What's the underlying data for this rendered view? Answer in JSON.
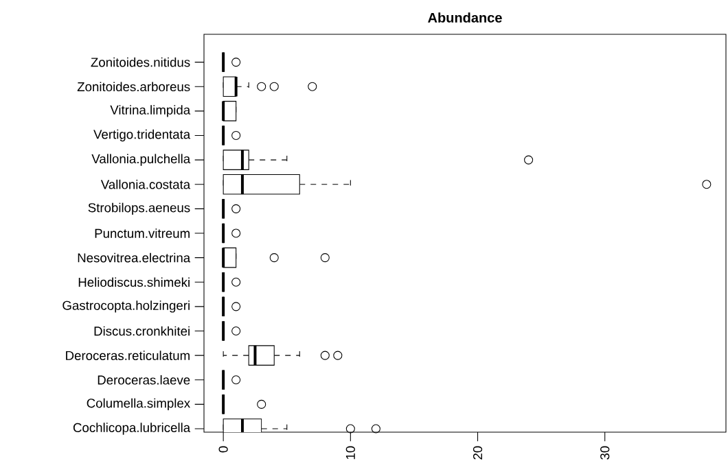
{
  "chart_data": {
    "type": "box",
    "orientation": "horizontal",
    "title": "Abundance",
    "categories": [
      "Zonitoides.nitidus",
      "Zonitoides.arboreus",
      "Vitrina.limpida",
      "Vertigo.tridentata",
      "Vallonia.pulchella",
      "Vallonia.costata",
      "Strobilops.aeneus",
      "Punctum.vitreum",
      "Nesovitrea.electrina",
      "Heliodiscus.shimeki",
      "Gastrocopta.holzingeri",
      "Discus.cronkhitei",
      "Deroceras.reticulatum",
      "Deroceras.laeve",
      "Columella.simplex",
      "Cochlicopa.lubricella"
    ],
    "boxes": [
      {
        "low": 0,
        "q1": 0,
        "median": 0,
        "q3": 0,
        "high": 0,
        "outliers": [
          1
        ]
      },
      {
        "low": 0,
        "q1": 0,
        "median": 1,
        "q3": 1,
        "high": 2,
        "outliers": [
          3,
          4,
          7
        ]
      },
      {
        "low": 0,
        "q1": 0,
        "median": 0,
        "q3": 1,
        "high": 1
      },
      {
        "low": 0,
        "q1": 0,
        "median": 0,
        "q3": 0,
        "high": 0,
        "outliers": [
          1
        ]
      },
      {
        "low": 0,
        "q1": 0,
        "median": 1.5,
        "q3": 2,
        "high": 5,
        "outliers": [
          24
        ]
      },
      {
        "low": 0,
        "q1": 0,
        "median": 1.5,
        "q3": 6,
        "high": 10,
        "outliers": [
          38
        ]
      },
      {
        "low": 0,
        "q1": 0,
        "median": 0,
        "q3": 0,
        "high": 0,
        "outliers": [
          1
        ]
      },
      {
        "low": 0,
        "q1": 0,
        "median": 0,
        "q3": 0,
        "high": 0,
        "outliers": [
          1
        ]
      },
      {
        "low": 0,
        "q1": 0,
        "median": 0,
        "q3": 1,
        "high": 1,
        "outliers": [
          4,
          8
        ]
      },
      {
        "low": 0,
        "q1": 0,
        "median": 0,
        "q3": 0,
        "high": 0,
        "outliers": [
          1
        ]
      },
      {
        "low": 0,
        "q1": 0,
        "median": 0,
        "q3": 0,
        "high": 0,
        "outliers": [
          1
        ]
      },
      {
        "low": 0,
        "q1": 0,
        "median": 0,
        "q3": 0,
        "high": 0,
        "outliers": [
          1
        ]
      },
      {
        "low": 0,
        "q1": 2,
        "median": 2.5,
        "q3": 4,
        "high": 6,
        "outliers": [
          8,
          9
        ]
      },
      {
        "low": 0,
        "q1": 0,
        "median": 0,
        "q3": 0,
        "high": 0,
        "outliers": [
          1
        ]
      },
      {
        "low": 0,
        "q1": 0,
        "median": 0,
        "q3": 0,
        "high": 0,
        "outliers": [
          3
        ]
      },
      {
        "low": 0,
        "q1": 0,
        "median": 1.5,
        "q3": 3,
        "high": 5,
        "outliers": [
          10,
          12
        ]
      }
    ],
    "xlim": [
      -1.52,
      39.52
    ],
    "xticks": [
      0,
      10,
      20,
      30
    ]
  }
}
